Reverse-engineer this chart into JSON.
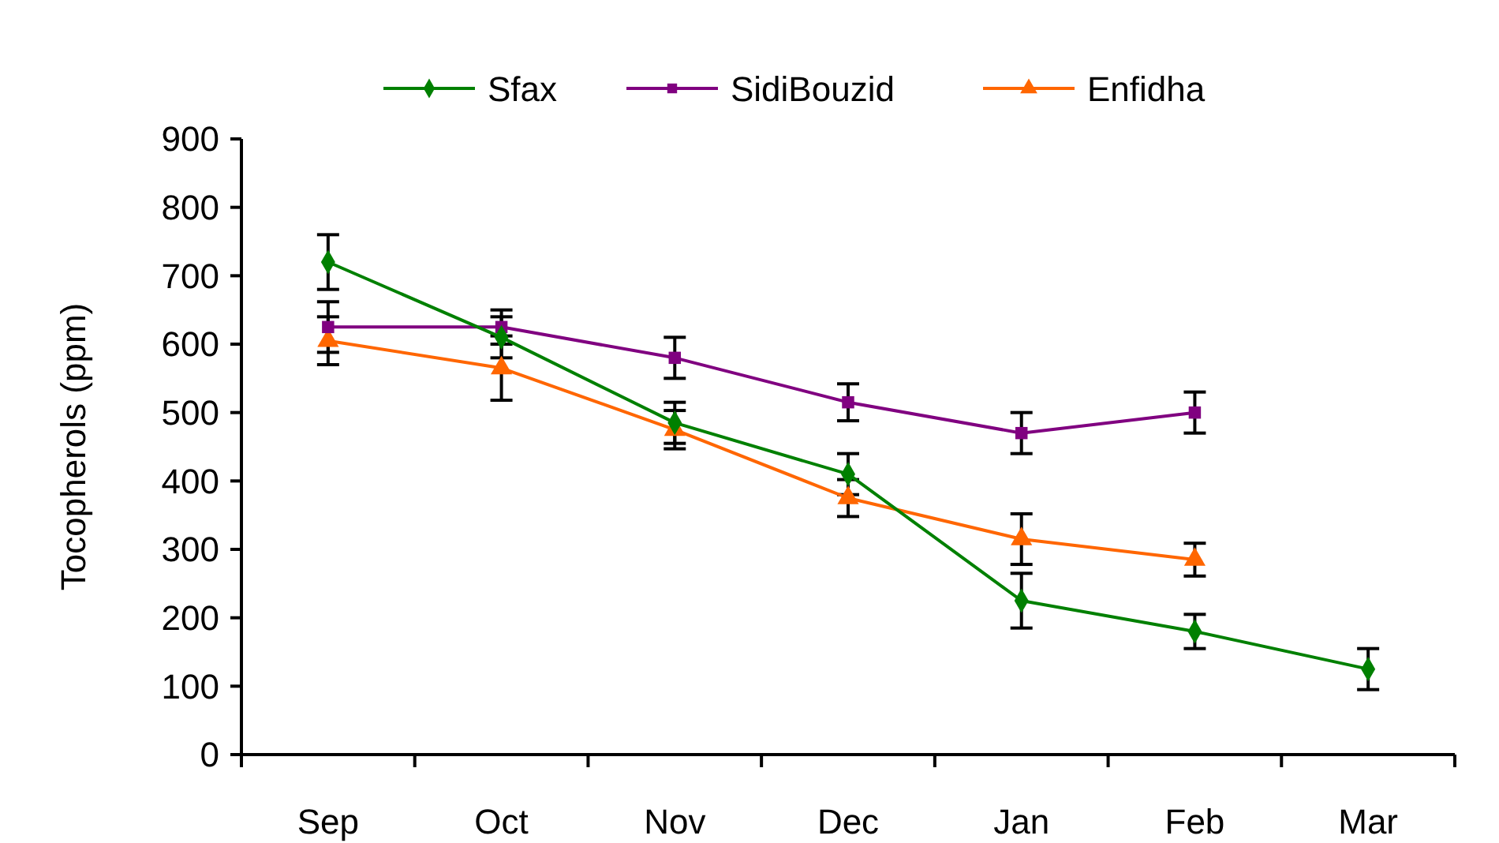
{
  "chart_data": {
    "type": "line",
    "ylabel": "Tocopherols (ppm)",
    "categories": [
      "Sep",
      "Oct",
      "Nov",
      "Dec",
      "Jan",
      "Feb",
      "Mar"
    ],
    "ylim": [
      0,
      900
    ],
    "yticks": [
      0,
      100,
      200,
      300,
      400,
      500,
      600,
      700,
      800,
      900
    ],
    "grid": false,
    "legend": "top",
    "line_style": "solid",
    "series": [
      {
        "name": "Sfax",
        "color": "#008000",
        "marker": "diamond",
        "values": [
          720,
          610,
          485,
          410,
          225,
          180,
          125
        ],
        "errors": [
          40,
          30,
          30,
          30,
          40,
          25,
          30
        ]
      },
      {
        "name": "SidiBouzid",
        "color": "#800080",
        "marker": "square",
        "values": [
          625,
          625,
          580,
          515,
          470,
          500,
          null
        ],
        "errors": [
          37,
          25,
          30,
          27,
          30,
          30,
          null
        ]
      },
      {
        "name": "Enfidha",
        "color": "#ff6600",
        "marker": "triangle",
        "values": [
          605,
          565,
          475,
          375,
          315,
          285,
          null
        ],
        "errors": [
          35,
          47,
          28,
          27,
          37,
          24,
          null
        ]
      }
    ]
  }
}
